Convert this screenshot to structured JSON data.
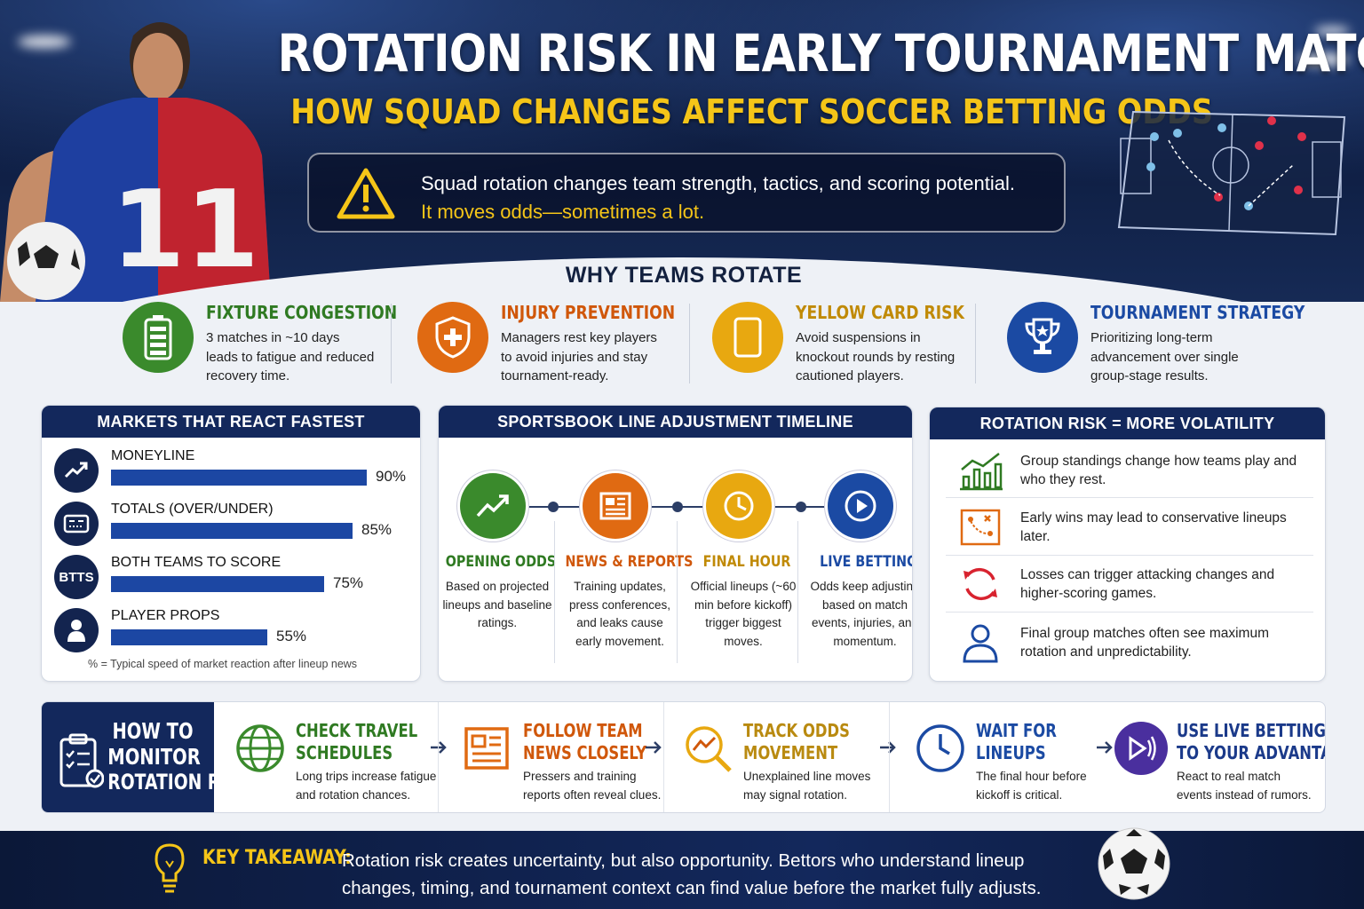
{
  "header": {
    "title": "ROTATION RISK IN EARLY TOURNAMENT MATCHES",
    "subtitle": "HOW SQUAD CHANGES AFFECT SOCCER BETTING ODDS",
    "alert_line1": "Squad rotation changes team strength, tactics, and scoring potential.",
    "alert_line2": "It moves odds—sometimes a lot.",
    "player_number": "11"
  },
  "why": {
    "title": "WHY TEAMS ROTATE",
    "reasons": [
      {
        "title": "FIXTURE CONGESTION",
        "desc": "3 matches in ~10 days leads to fatigue and reduced recovery time.",
        "color": "#3a8a2c",
        "icon": "battery-icon"
      },
      {
        "title": "INJURY PREVENTION",
        "desc": "Managers rest key players to avoid injuries and stay tournament-ready.",
        "color": "#e06a12",
        "icon": "shield-plus-icon"
      },
      {
        "title": "YELLOW CARD RISK",
        "desc": "Avoid suspensions in knockout rounds by resting cautioned players.",
        "color": "#e8a810",
        "icon": "yellow-card-icon"
      },
      {
        "title": "TOURNAMENT STRATEGY",
        "desc": "Prioritizing long-term advancement over single group-stage results.",
        "color": "#1b4aa3",
        "icon": "trophy-icon"
      }
    ]
  },
  "markets": {
    "title": "MARKETS THAT REACT FASTEST",
    "items": [
      {
        "label": "MONEYLINE",
        "value": 90,
        "display": "90%",
        "icon": "trend-up-icon"
      },
      {
        "label": "TOTALS (OVER/UNDER)",
        "value": 85,
        "display": "85%",
        "icon": "scoreboard-icon"
      },
      {
        "label": "BOTH TEAMS TO SCORE",
        "value": 75,
        "display": "75%",
        "icon_text": "BTTS"
      },
      {
        "label": "PLAYER PROPS",
        "value": 55,
        "display": "55%",
        "icon": "person-icon"
      }
    ],
    "note": "% = Typical speed of market reaction after lineup news"
  },
  "timeline": {
    "title": "SPORTSBOOK LINE ADJUSTMENT TIMELINE",
    "steps": [
      {
        "title": "OPENING ODDS",
        "desc": "Based on projected lineups and baseline ratings.",
        "color": "#3a8a2c"
      },
      {
        "title": "NEWS & REPORTS",
        "desc": "Training updates, press conferences, and leaks cause early movement.",
        "color": "#e06a12"
      },
      {
        "title": "FINAL HOUR",
        "desc": "Official lineups (~60 min before kickoff) trigger biggest moves.",
        "color": "#e8a810"
      },
      {
        "title": "LIVE BETTING",
        "desc": "Odds keep adjusting based on match events, injuries, and momentum.",
        "color": "#1b4aa3"
      }
    ]
  },
  "volatility": {
    "title": "ROTATION RISK = MORE VOLATILITY",
    "items": [
      {
        "text": "Group standings change how teams play and who they rest.",
        "icon": "bar-chart-icon"
      },
      {
        "text": "Early wins may lead to conservative lineups later.",
        "icon": "tactics-board-icon"
      },
      {
        "text": "Losses can trigger attacking changes and higher-scoring games.",
        "icon": "refresh-icon"
      },
      {
        "text": "Final group matches often see maximum rotation and unpredictability.",
        "icon": "user-icon"
      }
    ]
  },
  "monitor": {
    "title_line1": "HOW TO",
    "title_line2": "MONITOR",
    "title_line3": "ROTATION RISK",
    "steps": [
      {
        "title1": "CHECK TRAVEL",
        "title2": "SCHEDULES",
        "desc": "Long trips increase fatigue and rotation chances.",
        "color": "#3a8a2c"
      },
      {
        "title1": "FOLLOW TEAM",
        "title2": "NEWS CLOSELY",
        "desc": "Pressers and training reports often reveal clues.",
        "color": "#e06a12"
      },
      {
        "title1": "TRACK ODDS",
        "title2": "MOVEMENT",
        "desc": "Unexplained line moves may signal rotation.",
        "color": "#b98a10"
      },
      {
        "title1": "WAIT FOR",
        "title2": "LINEUPS",
        "desc": "The final hour before kickoff is critical.",
        "color": "#1b4aa3"
      },
      {
        "title1": "USE LIVE BETTING",
        "title2": "TO YOUR ADVANTAGE",
        "desc": "React to real match events instead of rumors.",
        "color": "#1b3a8a"
      }
    ]
  },
  "footer": {
    "label": "KEY TAKEAWAY:",
    "text": "Rotation risk creates uncertainty, but also opportunity. Bettors who understand lineup changes, timing, and tournament context can find value before the market fully adjusts."
  }
}
